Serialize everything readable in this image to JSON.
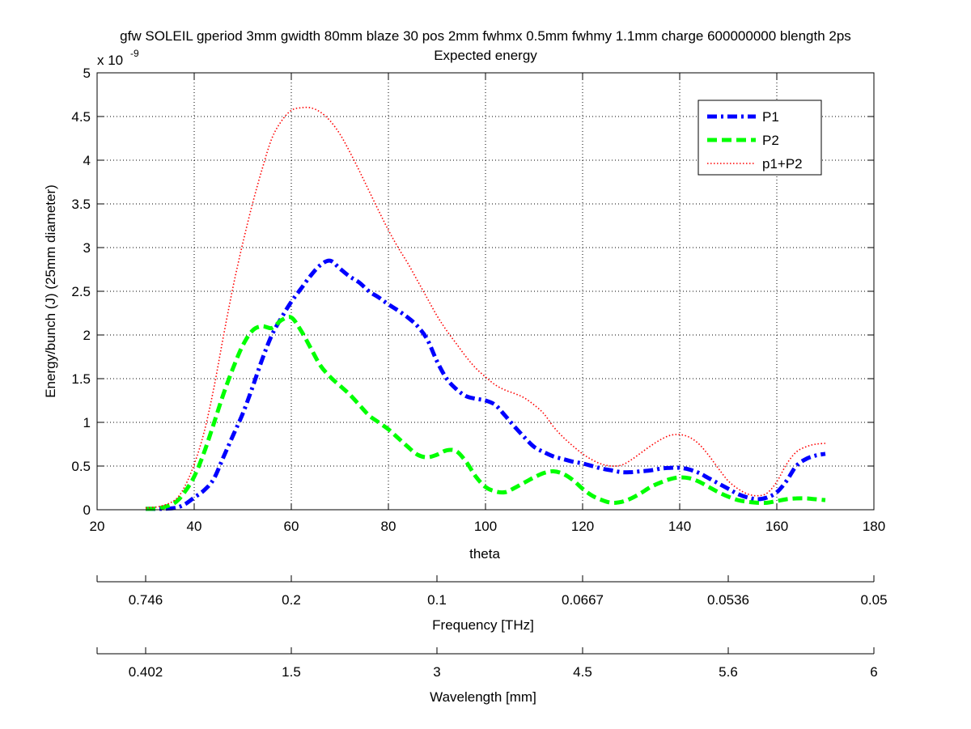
{
  "chart_data": {
    "type": "line",
    "title": "gfw SOLEIL gperiod 3mm gwidth 80mm blaze 30 pos 2mm fwhmx 0.5mm fwhmy 1.1mm charge 600000000 blength 2ps",
    "subtitle": "Expected energy",
    "xlabel": "theta",
    "ylabel": "Energy/bunch (J) (25mm diameter)",
    "y_exponent_label": "x 10",
    "y_exponent_power": "-9",
    "xlim": [
      20,
      180
    ],
    "ylim": [
      0,
      5
    ],
    "x_ticks": [
      20,
      40,
      60,
      80,
      100,
      120,
      140,
      160,
      180
    ],
    "y_ticks": [
      0,
      0.5,
      1,
      1.5,
      2,
      2.5,
      3,
      3.5,
      4,
      4.5,
      5
    ],
    "grid": true,
    "legend_position": "top-right",
    "series": [
      {
        "name": "P1",
        "color": "#0000ff",
        "style": "dash-dot",
        "x": [
          30,
          33,
          36,
          38,
          40,
          42,
          44,
          46,
          48,
          50,
          52,
          54,
          56,
          58,
          60,
          62,
          64,
          66,
          68,
          70,
          72,
          74,
          76,
          78,
          80,
          82,
          84,
          86,
          88,
          90,
          92,
          94,
          96,
          98,
          100,
          102,
          104,
          106,
          108,
          110,
          112,
          114,
          116,
          118,
          120,
          122,
          124,
          126,
          128,
          130,
          132,
          134,
          136,
          138,
          140,
          142,
          144,
          146,
          148,
          150,
          152,
          154,
          156,
          158,
          160,
          162,
          164,
          166,
          168,
          170
        ],
        "y": [
          0.01,
          0.01,
          0.02,
          0.06,
          0.14,
          0.22,
          0.35,
          0.6,
          0.85,
          1.1,
          1.4,
          1.72,
          2.0,
          2.2,
          2.38,
          2.53,
          2.68,
          2.8,
          2.85,
          2.76,
          2.67,
          2.6,
          2.5,
          2.43,
          2.35,
          2.28,
          2.2,
          2.1,
          1.95,
          1.7,
          1.5,
          1.38,
          1.3,
          1.27,
          1.25,
          1.2,
          1.08,
          0.95,
          0.83,
          0.72,
          0.66,
          0.61,
          0.58,
          0.55,
          0.53,
          0.5,
          0.47,
          0.45,
          0.43,
          0.43,
          0.44,
          0.45,
          0.47,
          0.48,
          0.48,
          0.46,
          0.42,
          0.36,
          0.3,
          0.24,
          0.18,
          0.14,
          0.12,
          0.14,
          0.2,
          0.33,
          0.5,
          0.58,
          0.62,
          0.64
        ]
      },
      {
        "name": "P2",
        "color": "#00ff00",
        "style": "dashed",
        "x": [
          30,
          33,
          36,
          38,
          40,
          42,
          44,
          46,
          48,
          50,
          52,
          54,
          56,
          58,
          60,
          62,
          64,
          66,
          68,
          70,
          72,
          74,
          76,
          78,
          80,
          82,
          84,
          86,
          88,
          90,
          92,
          94,
          96,
          98,
          100,
          102,
          104,
          106,
          108,
          110,
          112,
          114,
          116,
          118,
          120,
          122,
          124,
          126,
          128,
          130,
          132,
          134,
          136,
          138,
          140,
          142,
          144,
          146,
          148,
          150,
          152,
          154,
          156,
          158,
          160,
          162,
          164,
          166,
          168,
          170
        ],
        "y": [
          0.01,
          0.02,
          0.08,
          0.2,
          0.38,
          0.65,
          0.98,
          1.32,
          1.62,
          1.88,
          2.05,
          2.1,
          2.08,
          2.17,
          2.2,
          2.05,
          1.85,
          1.65,
          1.52,
          1.42,
          1.32,
          1.2,
          1.08,
          1.0,
          0.92,
          0.82,
          0.72,
          0.63,
          0.6,
          0.63,
          0.68,
          0.67,
          0.55,
          0.38,
          0.26,
          0.21,
          0.2,
          0.25,
          0.31,
          0.37,
          0.42,
          0.44,
          0.41,
          0.34,
          0.24,
          0.16,
          0.11,
          0.08,
          0.09,
          0.13,
          0.19,
          0.26,
          0.31,
          0.35,
          0.37,
          0.36,
          0.32,
          0.26,
          0.2,
          0.15,
          0.11,
          0.09,
          0.08,
          0.08,
          0.1,
          0.12,
          0.13,
          0.13,
          0.12,
          0.11
        ]
      },
      {
        "name": "p1+P2",
        "color": "#ff0000",
        "style": "dotted",
        "x": [
          30,
          33,
          36,
          38,
          40,
          42,
          44,
          46,
          48,
          50,
          52,
          54,
          56,
          58,
          60,
          62,
          64,
          66,
          68,
          70,
          72,
          74,
          76,
          78,
          80,
          82,
          84,
          86,
          88,
          90,
          92,
          94,
          96,
          98,
          100,
          102,
          104,
          106,
          108,
          110,
          112,
          114,
          116,
          118,
          120,
          122,
          124,
          126,
          128,
          130,
          132,
          134,
          136,
          138,
          140,
          142,
          144,
          146,
          148,
          150,
          152,
          154,
          156,
          158,
          160,
          162,
          164,
          166,
          168,
          170
        ],
        "y": [
          0.02,
          0.04,
          0.11,
          0.26,
          0.52,
          0.88,
          1.38,
          1.98,
          2.55,
          3.05,
          3.5,
          3.9,
          4.25,
          4.45,
          4.57,
          4.6,
          4.6,
          4.55,
          4.45,
          4.3,
          4.1,
          3.88,
          3.65,
          3.42,
          3.2,
          3.0,
          2.82,
          2.62,
          2.42,
          2.22,
          2.05,
          1.9,
          1.75,
          1.62,
          1.52,
          1.43,
          1.37,
          1.33,
          1.28,
          1.2,
          1.1,
          0.95,
          0.83,
          0.73,
          0.64,
          0.57,
          0.52,
          0.5,
          0.51,
          0.57,
          0.65,
          0.73,
          0.8,
          0.85,
          0.86,
          0.83,
          0.75,
          0.62,
          0.47,
          0.33,
          0.24,
          0.18,
          0.16,
          0.19,
          0.32,
          0.52,
          0.66,
          0.72,
          0.75,
          0.76
        ]
      }
    ],
    "secondary_axes": [
      {
        "label": "Frequency [THz]",
        "tick_labels": [
          "0.746",
          "0.2",
          "0.1",
          "0.0667",
          "0.0536",
          "0.05"
        ],
        "tick_theta": [
          30,
          60,
          90,
          120,
          150,
          180
        ]
      },
      {
        "label": "Wavelength [mm]",
        "tick_labels": [
          "0.402",
          "1.5",
          "3",
          "4.5",
          "5.6",
          "6"
        ],
        "tick_theta": [
          30,
          60,
          90,
          120,
          150,
          180
        ]
      }
    ]
  }
}
